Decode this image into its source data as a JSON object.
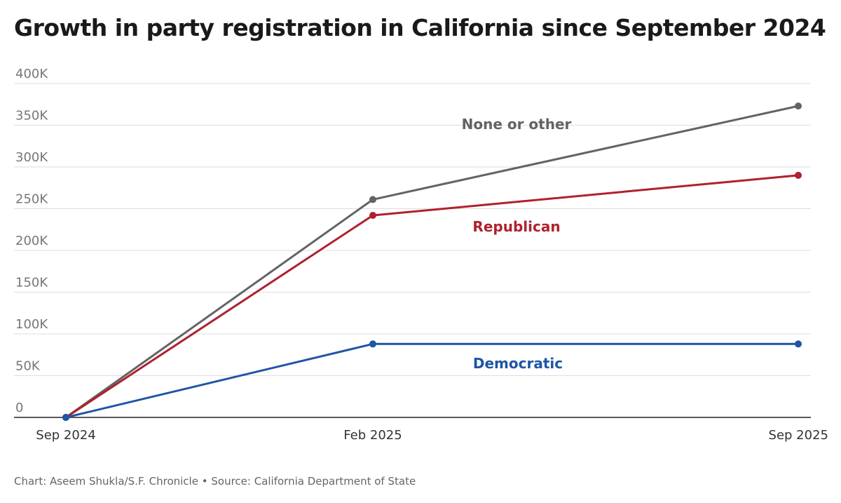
{
  "chart_data": {
    "type": "line",
    "title": "Growth in party registration in California since September 2024",
    "xlabel": "",
    "ylabel": "",
    "categories": [
      "Sep 2024",
      "Feb 2025",
      "Sep 2025"
    ],
    "y_ticks": [
      0,
      50000,
      100000,
      150000,
      200000,
      250000,
      300000,
      350000,
      400000
    ],
    "y_tick_labels": [
      "0",
      "50K",
      "100K",
      "150K",
      "200K",
      "250K",
      "300K",
      "350K",
      "400K"
    ],
    "ylim": [
      0,
      400000
    ],
    "grid": true,
    "series": [
      {
        "name": "None or other",
        "label": "None or other",
        "color": "#636363",
        "values": [
          0,
          261000,
          373000
        ]
      },
      {
        "name": "Republican",
        "label": "Republican",
        "color": "#b0212e",
        "values": [
          0,
          242000,
          290000
        ]
      },
      {
        "name": "Democratic",
        "label": "Democratic",
        "color": "#1f55a4",
        "values": [
          0,
          88000,
          88000
        ]
      }
    ]
  },
  "footer": {
    "credit": "Chart: Aseem Shukla/S.F. Chronicle",
    "separator": "•",
    "source": "Source: California Department of State"
  }
}
